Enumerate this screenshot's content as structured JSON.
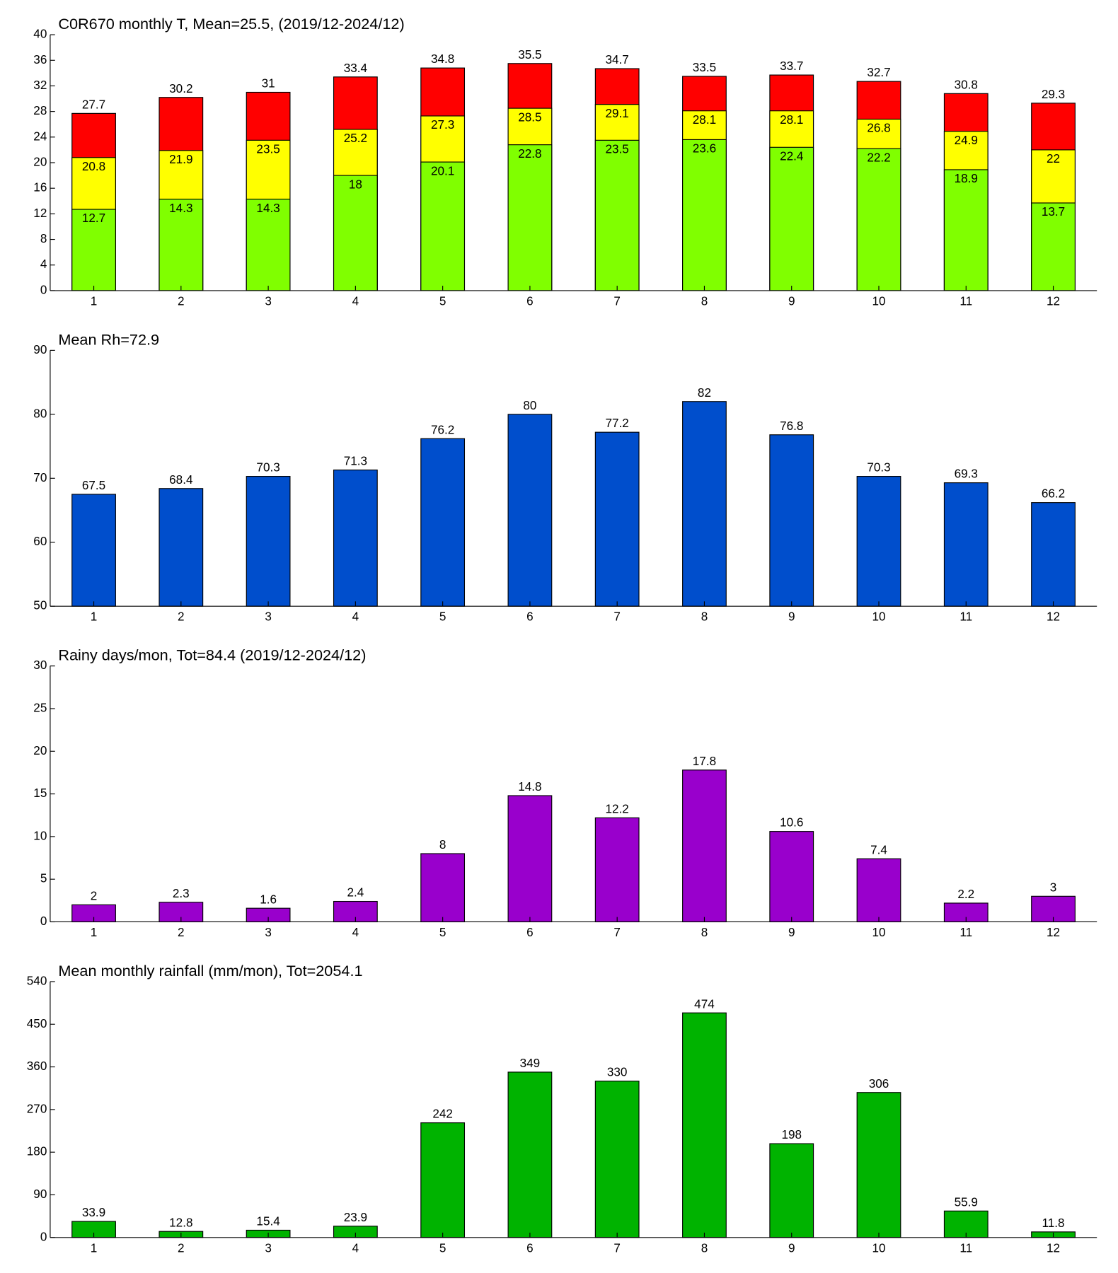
{
  "chart_data": [
    {
      "type": "bar",
      "title": "C0R670 monthly T, Mean=25.5, (2019/12-2024/12)",
      "categories": [
        "1",
        "2",
        "3",
        "4",
        "5",
        "6",
        "7",
        "8",
        "9",
        "10",
        "11",
        "12"
      ],
      "series": [
        {
          "color": "#ff0000",
          "values": [
            27.7,
            30.2,
            31,
            33.4,
            34.8,
            35.5,
            34.7,
            33.5,
            33.7,
            32.7,
            30.8,
            29.3
          ]
        },
        {
          "color": "#ffff00",
          "values": [
            20.8,
            21.9,
            23.5,
            25.2,
            27.3,
            28.5,
            29.1,
            28.1,
            28.1,
            26.8,
            24.9,
            22
          ]
        },
        {
          "color": "#80ff00",
          "values": [
            12.7,
            14.3,
            14.3,
            18,
            20.1,
            22.8,
            23.5,
            23.6,
            22.4,
            22.2,
            18.9,
            13.7
          ]
        }
      ],
      "ylim": [
        0,
        40
      ],
      "yticks": [
        0,
        4,
        8,
        12,
        16,
        20,
        24,
        28,
        32,
        36,
        40
      ]
    },
    {
      "type": "bar",
      "title": "Mean Rh=72.9",
      "categories": [
        "1",
        "2",
        "3",
        "4",
        "5",
        "6",
        "7",
        "8",
        "9",
        "10",
        "11",
        "12"
      ],
      "series": [
        {
          "color": "#004ecc",
          "values": [
            67.5,
            68.4,
            70.3,
            71.3,
            76.2,
            80,
            77.2,
            82,
            76.8,
            70.3,
            69.3,
            66.2
          ]
        }
      ],
      "ylim": [
        50,
        90
      ],
      "yticks": [
        50,
        60,
        70,
        80,
        90
      ]
    },
    {
      "type": "bar",
      "title": "Rainy days/mon, Tot=84.4 (2019/12-2024/12)",
      "categories": [
        "1",
        "2",
        "3",
        "4",
        "5",
        "6",
        "7",
        "8",
        "9",
        "10",
        "11",
        "12"
      ],
      "series": [
        {
          "color": "#9900cc",
          "values": [
            2,
            2.3,
            1.6,
            2.4,
            8,
            14.8,
            12.2,
            17.8,
            10.6,
            7.4,
            2.2,
            3
          ]
        }
      ],
      "ylim": [
        0,
        30
      ],
      "yticks": [
        0,
        5,
        10,
        15,
        20,
        25,
        30
      ]
    },
    {
      "type": "bar",
      "title": "Mean monthly rainfall (mm/mon), Tot=2054.1",
      "categories": [
        "1",
        "2",
        "3",
        "4",
        "5",
        "6",
        "7",
        "8",
        "9",
        "10",
        "11",
        "12"
      ],
      "series": [
        {
          "color": "#00b300",
          "values": [
            33.9,
            12.8,
            15.4,
            23.9,
            242,
            349,
            330,
            474,
            198,
            306,
            55.9,
            11.8
          ]
        }
      ],
      "ylim": [
        0,
        540
      ],
      "yticks": [
        0,
        90,
        180,
        270,
        360,
        450,
        540
      ]
    }
  ]
}
